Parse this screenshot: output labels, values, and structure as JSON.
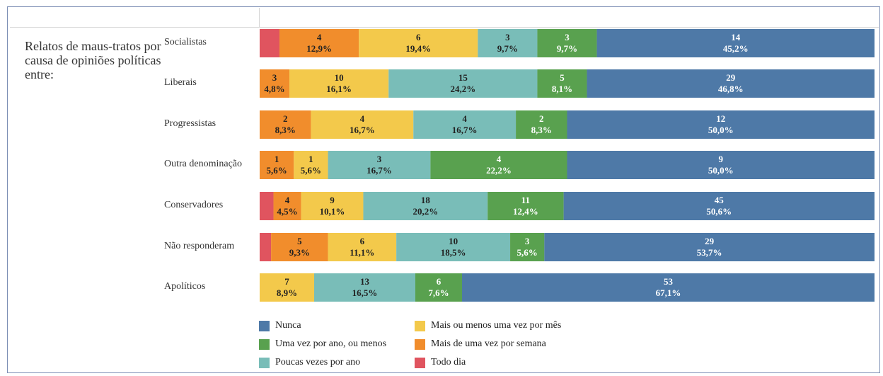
{
  "chart_data": {
    "type": "bar",
    "orientation": "horizontal",
    "stacked": "percent",
    "side_title": "Relatos de maus-tratos por causa de opiniões políticas entre:",
    "categories": [
      "Socialistas",
      "Liberais",
      "Progressistas",
      "Outra denominação",
      "Conservadores",
      "Não responderam",
      "Apolíticos"
    ],
    "legend_placement": "bottom",
    "series": [
      {
        "name": "Todo dia",
        "color": "#e0545f",
        "values": [
          1,
          0,
          0,
          0,
          2,
          1,
          0
        ],
        "labels": [
          [
            "",
            ""
          ],
          [
            "",
            ""
          ],
          [
            "",
            ""
          ],
          [
            "",
            ""
          ],
          [
            "",
            ""
          ],
          [
            "",
            ""
          ],
          [
            "",
            ""
          ]
        ]
      },
      {
        "name": "Mais de uma vez por semana",
        "color": "#f18d2c",
        "values": [
          4,
          3,
          2,
          1,
          4,
          5,
          0
        ],
        "labels": [
          [
            "4",
            "12,9%"
          ],
          [
            "3",
            "4,8%"
          ],
          [
            "2",
            "8,3%"
          ],
          [
            "1",
            "5,6%"
          ],
          [
            "4",
            "4,5%"
          ],
          [
            "5",
            "9,3%"
          ],
          [
            "",
            ""
          ]
        ]
      },
      {
        "name": "Mais ou menos uma vez por mês",
        "color": "#f3c94b",
        "values": [
          6,
          10,
          4,
          1,
          9,
          6,
          7
        ],
        "labels": [
          [
            "6",
            "19,4%"
          ],
          [
            "10",
            "16,1%"
          ],
          [
            "4",
            "16,7%"
          ],
          [
            "1",
            "5,6%"
          ],
          [
            "9",
            "10,1%"
          ],
          [
            "6",
            "11,1%"
          ],
          [
            "7",
            "8,9%"
          ]
        ]
      },
      {
        "name": "Poucas vezes por ano",
        "color": "#79bdb8",
        "values": [
          3,
          15,
          4,
          3,
          18,
          10,
          13
        ],
        "labels": [
          [
            "3",
            "9,7%"
          ],
          [
            "15",
            "24,2%"
          ],
          [
            "4",
            "16,7%"
          ],
          [
            "3",
            "16,7%"
          ],
          [
            "18",
            "20,2%"
          ],
          [
            "10",
            "18,5%"
          ],
          [
            "13",
            "16,5%"
          ]
        ]
      },
      {
        "name": "Uma vez por ano, ou menos",
        "color": "#59a14f",
        "values": [
          3,
          5,
          2,
          4,
          11,
          3,
          6
        ],
        "labels": [
          [
            "3",
            "9,7%"
          ],
          [
            "5",
            "8,1%"
          ],
          [
            "2",
            "8,3%"
          ],
          [
            "4",
            "22,2%"
          ],
          [
            "11",
            "12,4%"
          ],
          [
            "3",
            "5,6%"
          ],
          [
            "6",
            "7,6%"
          ]
        ]
      },
      {
        "name": "Nunca",
        "color": "#4e79a7",
        "values": [
          14,
          29,
          12,
          9,
          45,
          29,
          53
        ],
        "labels": [
          [
            "14",
            "45,2%"
          ],
          [
            "29",
            "46,8%"
          ],
          [
            "12",
            "50,0%"
          ],
          [
            "9",
            "50,0%"
          ],
          [
            "45",
            "50,6%"
          ],
          [
            "29",
            "53,7%"
          ],
          [
            "53",
            "67,1%"
          ]
        ]
      }
    ],
    "legend_order": [
      "Nunca",
      "Mais ou menos uma vez por mês",
      "Uma vez por ano, ou menos",
      "Mais de uma vez por semana",
      "Poucas vezes por ano",
      "Todo dia"
    ]
  }
}
